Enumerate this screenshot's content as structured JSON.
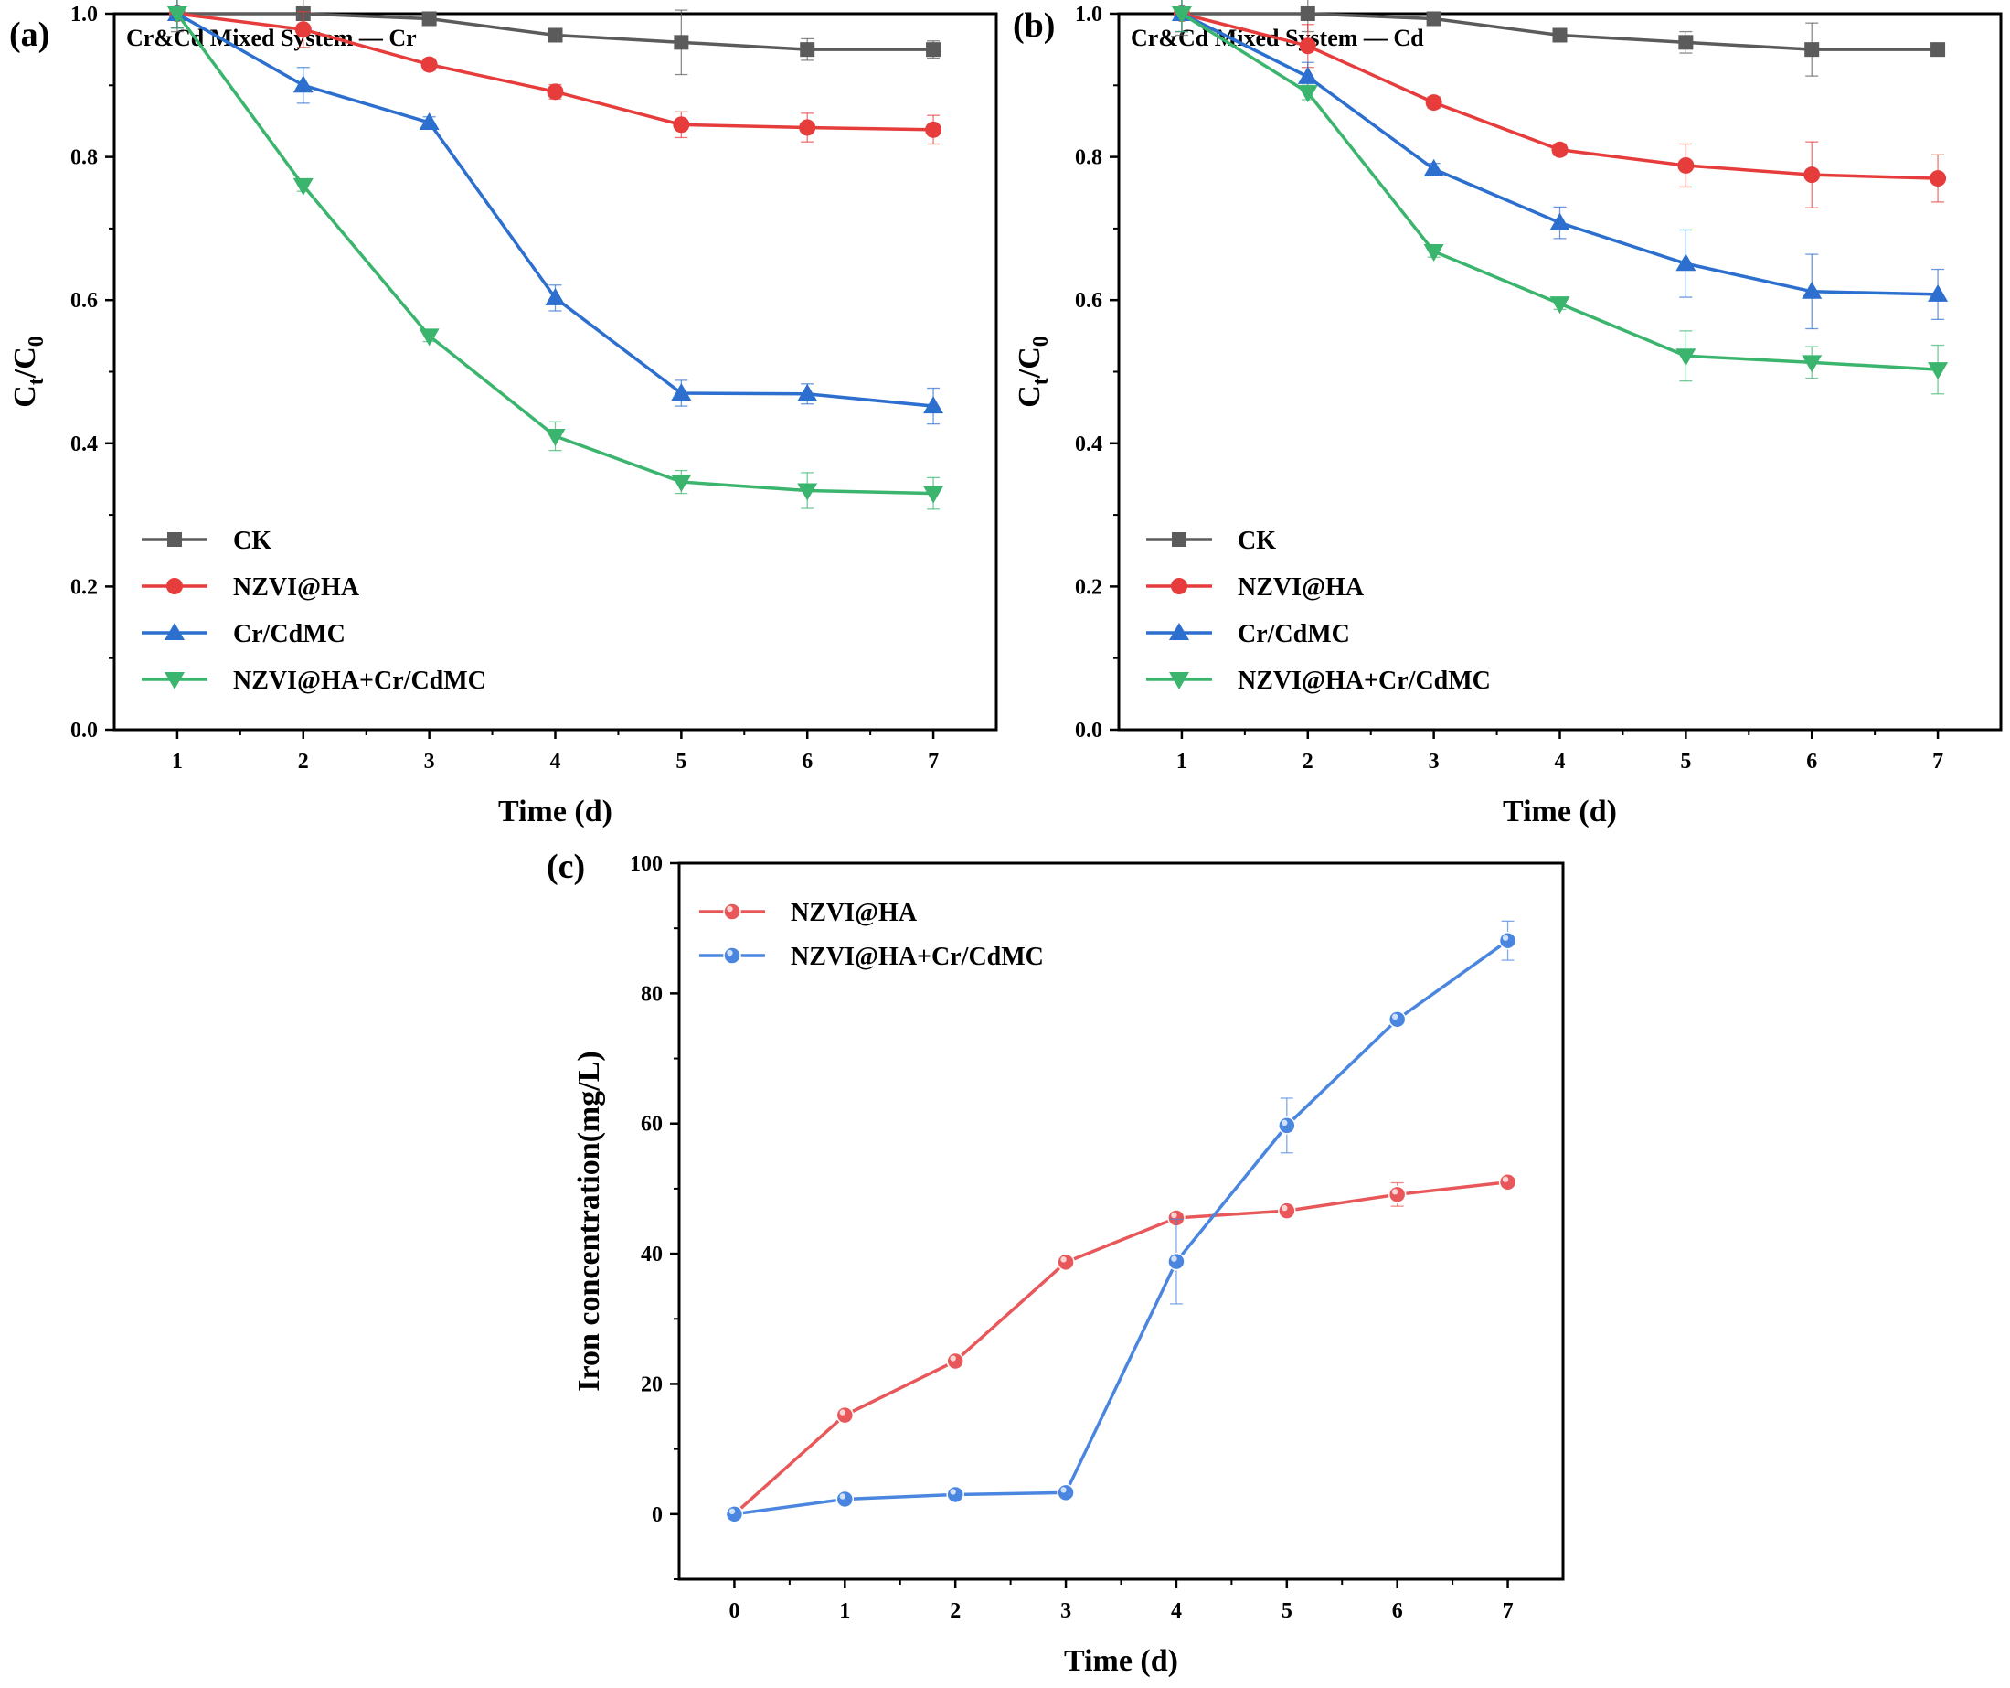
{
  "chart_data": [
    {
      "panel_label": "(a)",
      "type": "line",
      "title": "Cr&Cd Mixed System — Cr",
      "xlabel": "Time (d)",
      "ylabel": "Ct/C0",
      "xlim": [
        0.5,
        7.5
      ],
      "ylim": [
        0,
        1.0
      ],
      "xticks": [
        1,
        2,
        3,
        4,
        5,
        6,
        7
      ],
      "yticks": [
        0.0,
        0.2,
        0.4,
        0.6,
        0.8,
        1.0
      ],
      "x": [
        1,
        2,
        3,
        4,
        5,
        6,
        7
      ],
      "legend_position": "bottom-left",
      "series": [
        {
          "name": "CK",
          "color": "#5b5b5b",
          "marker": "square",
          "values": [
            1.0,
            1.0,
            0.993,
            0.97,
            0.96,
            0.95,
            0.95
          ],
          "errors": [
            0.025,
            0.022,
            0.008,
            0.006,
            0.045,
            0.015,
            0.012
          ]
        },
        {
          "name": "NZVI@HA",
          "color": "#e63c3c",
          "marker": "circle",
          "values": [
            1.0,
            0.978,
            0.929,
            0.891,
            0.845,
            0.841,
            0.838
          ],
          "errors": [
            0.02,
            0.025,
            0.008,
            0.01,
            0.018,
            0.02,
            0.02
          ]
        },
        {
          "name": "Cr/CdMC",
          "color": "#2c6fcf",
          "marker": "triangle-up",
          "values": [
            1.0,
            0.9,
            0.848,
            0.603,
            0.47,
            0.469,
            0.452
          ],
          "errors": [
            0.02,
            0.025,
            0.008,
            0.018,
            0.018,
            0.014,
            0.025
          ]
        },
        {
          "name": "NZVI@HA+Cr/CdMC",
          "color": "#3bb56e",
          "marker": "triangle-down",
          "values": [
            1.0,
            0.76,
            0.55,
            0.41,
            0.346,
            0.334,
            0.33
          ],
          "errors": [
            0.02,
            0.008,
            0.008,
            0.02,
            0.016,
            0.025,
            0.022
          ]
        }
      ]
    },
    {
      "panel_label": "(b)",
      "type": "line",
      "title": "Cr&Cd Mixed System — Cd",
      "xlabel": "Time (d)",
      "ylabel": "Ct/C0",
      "xlim": [
        0.5,
        7.5
      ],
      "ylim": [
        0,
        1.0
      ],
      "xticks": [
        1,
        2,
        3,
        4,
        5,
        6,
        7
      ],
      "yticks": [
        0.0,
        0.2,
        0.4,
        0.6,
        0.8,
        1.0
      ],
      "x": [
        1,
        2,
        3,
        4,
        5,
        6,
        7
      ],
      "legend_position": "bottom-left",
      "series": [
        {
          "name": "CK",
          "color": "#5b5b5b",
          "marker": "square",
          "values": [
            1.0,
            1.0,
            0.993,
            0.97,
            0.96,
            0.95,
            0.95
          ],
          "errors": [
            0.03,
            0.025,
            0.008,
            0.006,
            0.015,
            0.037,
            0.008
          ]
        },
        {
          "name": "NZVI@HA",
          "color": "#e63c3c",
          "marker": "circle",
          "values": [
            1.0,
            0.955,
            0.876,
            0.81,
            0.788,
            0.775,
            0.77
          ],
          "errors": [
            0.025,
            0.03,
            0.008,
            0.008,
            0.03,
            0.046,
            0.033
          ]
        },
        {
          "name": "Cr/CdMC",
          "color": "#2c6fcf",
          "marker": "triangle-up",
          "values": [
            1.0,
            0.912,
            0.783,
            0.708,
            0.651,
            0.612,
            0.608
          ],
          "errors": [
            0.025,
            0.02,
            0.008,
            0.022,
            0.047,
            0.052,
            0.035
          ]
        },
        {
          "name": "NZVI@HA+Cr/CdMC",
          "color": "#3bb56e",
          "marker": "triangle-down",
          "values": [
            1.0,
            0.89,
            0.668,
            0.595,
            0.522,
            0.513,
            0.503
          ],
          "errors": [
            0.025,
            0.01,
            0.008,
            0.008,
            0.035,
            0.022,
            0.034
          ]
        }
      ]
    },
    {
      "panel_label": "(c)",
      "type": "line",
      "title": "",
      "xlabel": "Time (d)",
      "ylabel": "Iron concentration(mg/L)",
      "xlim": [
        -0.5,
        7.5
      ],
      "ylim": [
        -10,
        100
      ],
      "xticks": [
        0,
        1,
        2,
        3,
        4,
        5,
        6,
        7
      ],
      "yticks": [
        0,
        20,
        40,
        60,
        80,
        100
      ],
      "x": [
        0,
        1,
        2,
        3,
        4,
        5,
        6,
        7
      ],
      "legend_position": "top-left",
      "series": [
        {
          "name": "NZVI@HA",
          "color": "#e8585a",
          "marker": "sphere",
          "values": [
            0,
            15.2,
            23.5,
            38.7,
            45.5,
            46.6,
            49.1,
            51.0
          ],
          "errors": [
            0,
            0,
            0,
            0,
            0,
            0,
            1.8,
            0
          ]
        },
        {
          "name": "NZVI@HA+Cr/CdMC",
          "color": "#4a86e0",
          "marker": "sphere",
          "values": [
            0,
            2.3,
            3.0,
            3.3,
            38.8,
            59.7,
            76.0,
            88.1
          ],
          "errors": [
            0,
            0,
            0,
            0,
            6.5,
            4.2,
            0,
            3.0
          ]
        }
      ]
    }
  ]
}
